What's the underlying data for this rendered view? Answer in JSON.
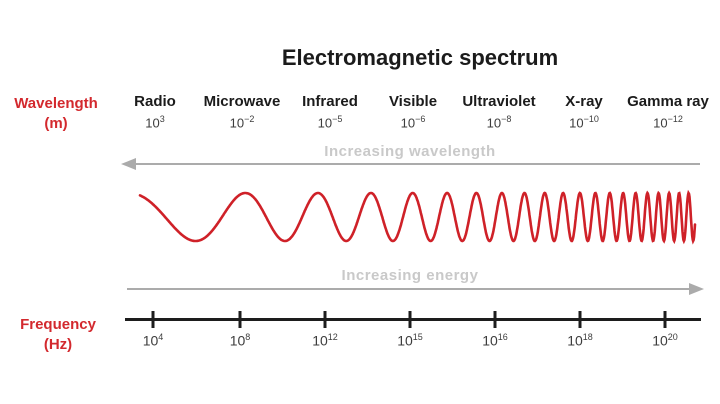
{
  "title": "Electromagnetic spectrum",
  "colors": {
    "accent_red": "#d3292e",
    "wave_red": "#cf2128",
    "arrow_gray": "#ababab",
    "arrow_text_gray": "#c9c9c9",
    "axis_black": "#1d1d1d",
    "text_black": "#1b1b1b",
    "value_gray": "#3d3d3d",
    "background": "#ffffff"
  },
  "left_labels": {
    "wavelength": {
      "line1": "Wavelength",
      "line2": "(m)"
    },
    "frequency": {
      "line1": "Frequency",
      "line2": "(Hz)"
    }
  },
  "arrows": {
    "wavelength_label": "Increasing wavelength",
    "energy_label": "Increasing energy"
  },
  "bands": [
    {
      "name": "Radio",
      "wavelength_base": "10",
      "wavelength_exp": "3"
    },
    {
      "name": "Microwave",
      "wavelength_base": "10",
      "wavelength_exp": "−2"
    },
    {
      "name": "Infrared",
      "wavelength_base": "10",
      "wavelength_exp": "−5"
    },
    {
      "name": "Visible",
      "wavelength_base": "10",
      "wavelength_exp": "−6"
    },
    {
      "name": "Ultraviolet",
      "wavelength_base": "10",
      "wavelength_exp": "−8"
    },
    {
      "name": "X-ray",
      "wavelength_base": "10",
      "wavelength_exp": "−10"
    },
    {
      "name": "Gamma ray",
      "wavelength_base": "10",
      "wavelength_exp": "−12"
    }
  ],
  "frequency_axis": {
    "ticks": [
      {
        "base": "10",
        "exp": "4"
      },
      {
        "base": "10",
        "exp": "8"
      },
      {
        "base": "10",
        "exp": "12"
      },
      {
        "base": "10",
        "exp": "15"
      },
      {
        "base": "10",
        "exp": "16"
      },
      {
        "base": "10",
        "exp": "18"
      },
      {
        "base": "10",
        "exp": "20"
      }
    ]
  },
  "chart_data": {
    "type": "diagram",
    "title": "Electromagnetic spectrum",
    "bands": [
      {
        "name": "Radio",
        "wavelength_m": "10^3",
        "frequency_hz": "10^4"
      },
      {
        "name": "Microwave",
        "wavelength_m": "10^-2",
        "frequency_hz": "10^8"
      },
      {
        "name": "Infrared",
        "wavelength_m": "10^-5",
        "frequency_hz": "10^12"
      },
      {
        "name": "Visible",
        "wavelength_m": "10^-6",
        "frequency_hz": "10^15"
      },
      {
        "name": "Ultraviolet",
        "wavelength_m": "10^-8",
        "frequency_hz": "10^16"
      },
      {
        "name": "X-ray",
        "wavelength_m": "10^-10",
        "frequency_hz": "10^18"
      },
      {
        "name": "Gamma ray",
        "wavelength_m": "10^-12",
        "frequency_hz": "10^20"
      }
    ],
    "annotations": [
      "Increasing wavelength",
      "Increasing energy"
    ],
    "wave": {
      "style": "chirp",
      "description": "red sine wave whose wavelength decreases left to right"
    }
  }
}
